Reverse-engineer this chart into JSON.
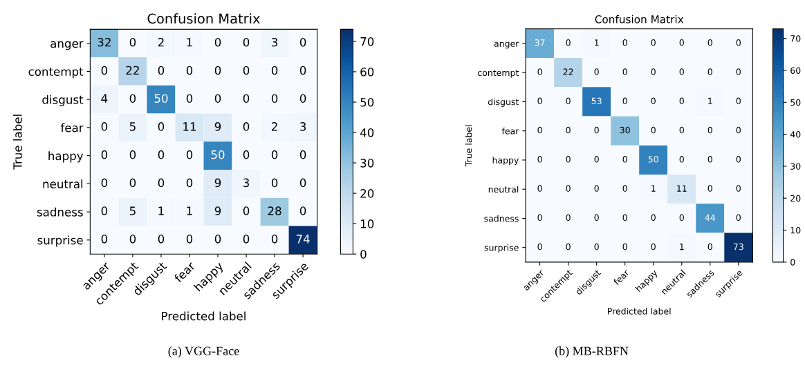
{
  "chart_data": [
    {
      "type": "heatmap",
      "title": "Confusion Matrix",
      "xlabel": "Predicted label",
      "ylabel": "True label",
      "categories": [
        "anger",
        "contempt",
        "disgust",
        "fear",
        "happy",
        "neutral",
        "sadness",
        "surprise"
      ],
      "y_categories": [
        "anger",
        "contempt",
        "disgust",
        "fear",
        "happy",
        "neutral",
        "sadness",
        "surprise"
      ],
      "cells": [
        [
          32,
          0,
          2,
          1,
          0,
          0,
          3,
          0
        ],
        [
          0,
          22,
          0,
          0,
          0,
          0,
          0,
          0
        ],
        [
          4,
          0,
          50,
          0,
          0,
          0,
          0,
          0
        ],
        [
          0,
          5,
          0,
          11,
          9,
          0,
          2,
          3
        ],
        [
          0,
          0,
          0,
          0,
          50,
          0,
          0,
          0
        ],
        [
          0,
          0,
          0,
          0,
          9,
          3,
          0,
          0
        ],
        [
          0,
          5,
          1,
          1,
          9,
          0,
          28,
          0
        ],
        [
          0,
          0,
          0,
          0,
          0,
          0,
          0,
          74
        ]
      ],
      "clim": [
        0,
        74
      ],
      "cticks": [
        0,
        10,
        20,
        30,
        40,
        50,
        60,
        70
      ],
      "data_labels": true,
      "annotations": [
        "(a) VGG-Face"
      ]
    },
    {
      "type": "heatmap",
      "title": "Confusion Matrix",
      "xlabel": "Predicted label",
      "ylabel": "True label",
      "categories": [
        "anger",
        "contempt",
        "disgust",
        "fear",
        "happy",
        "neutral",
        "sadness",
        "surprise"
      ],
      "y_categories": [
        "anger",
        "contempt",
        "disgust",
        "fear",
        "happy",
        "neutral",
        "sadness",
        "surprise"
      ],
      "cells": [
        [
          37,
          0,
          1,
          0,
          0,
          0,
          0,
          0
        ],
        [
          0,
          22,
          0,
          0,
          0,
          0,
          0,
          0
        ],
        [
          0,
          0,
          53,
          0,
          0,
          0,
          1,
          0
        ],
        [
          0,
          0,
          0,
          30,
          0,
          0,
          0,
          0
        ],
        [
          0,
          0,
          0,
          0,
          50,
          0,
          0,
          0
        ],
        [
          0,
          0,
          0,
          0,
          1,
          11,
          0,
          0
        ],
        [
          0,
          0,
          0,
          0,
          0,
          0,
          44,
          0
        ],
        [
          0,
          0,
          0,
          0,
          0,
          1,
          0,
          73
        ]
      ],
      "clim": [
        0,
        73
      ],
      "cticks": [
        0,
        10,
        20,
        30,
        40,
        50,
        60,
        70
      ],
      "data_labels": true,
      "annotations": [
        "(b) MB-RBFN"
      ]
    }
  ]
}
